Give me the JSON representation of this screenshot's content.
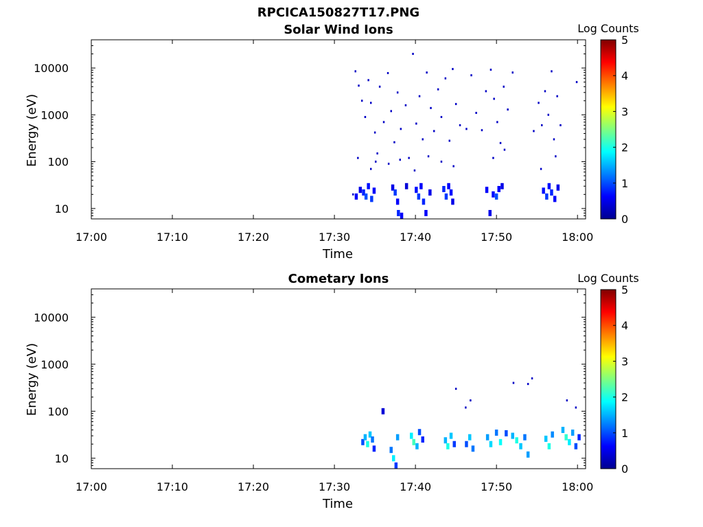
{
  "figure_title": "RPCICA150827T17.PNG",
  "colormap": [
    "#00008f",
    "#0000ff",
    "#0080ff",
    "#00ffff",
    "#80ff80",
    "#ffff00",
    "#ff8000",
    "#ff0000",
    "#800000"
  ],
  "chart_data": [
    {
      "type": "heatmap",
      "title": "Solar Wind Ions",
      "xlabel": "Time",
      "ylabel": "Energy (eV)",
      "yscale": "log",
      "ylim": [
        6,
        40000
      ],
      "xlim_minutes": [
        0,
        61
      ],
      "xticks": [
        "17:00",
        "17:10",
        "17:20",
        "17:30",
        "17:40",
        "17:50",
        "18:00"
      ],
      "yticks": [
        "10",
        "100",
        "1000",
        "10000"
      ],
      "colorbar": {
        "label": "Log Counts",
        "range": [
          0,
          5
        ],
        "ticks": [
          "0",
          "1",
          "2",
          "3",
          "4",
          "5"
        ]
      },
      "cells": [
        [
          32.3,
          20,
          0.3
        ],
        [
          32.7,
          18,
          0.6
        ],
        [
          33.2,
          25,
          0.5
        ],
        [
          33.6,
          22,
          0.8
        ],
        [
          33.9,
          18,
          1.0
        ],
        [
          34.2,
          30,
          0.7
        ],
        [
          34.6,
          16,
          0.9
        ],
        [
          34.9,
          24,
          0.6
        ],
        [
          37.2,
          28,
          0.5
        ],
        [
          37.5,
          22,
          0.9
        ],
        [
          37.8,
          14,
          0.6
        ],
        [
          37.9,
          8,
          0.8
        ],
        [
          38.3,
          7,
          0.6
        ],
        [
          38.9,
          30,
          0.4
        ],
        [
          40.1,
          25,
          0.7
        ],
        [
          40.4,
          18,
          0.9
        ],
        [
          40.7,
          30,
          0.6
        ],
        [
          41.0,
          14,
          0.8
        ],
        [
          41.3,
          8,
          0.6
        ],
        [
          41.8,
          22,
          0.5
        ],
        [
          43.5,
          26,
          0.8
        ],
        [
          43.8,
          18,
          0.9
        ],
        [
          44.1,
          30,
          0.6
        ],
        [
          44.4,
          22,
          0.7
        ],
        [
          44.6,
          14,
          0.5
        ],
        [
          48.8,
          25,
          0.6
        ],
        [
          49.2,
          8,
          0.5
        ],
        [
          49.6,
          20,
          0.7
        ],
        [
          50.0,
          18,
          1.0
        ],
        [
          50.3,
          26,
          0.6
        ],
        [
          50.7,
          30,
          0.5
        ],
        [
          55.8,
          24,
          0.7
        ],
        [
          56.2,
          18,
          0.9
        ],
        [
          56.5,
          30,
          0.7
        ],
        [
          56.8,
          22,
          0.8
        ],
        [
          57.2,
          16,
          0.6
        ],
        [
          57.6,
          28,
          0.5
        ],
        [
          32.6,
          8500,
          0.3
        ],
        [
          33.0,
          4200,
          0.3
        ],
        [
          33.4,
          2000,
          0.3
        ],
        [
          33.8,
          900,
          0.3
        ],
        [
          34.2,
          5500,
          0.3
        ],
        [
          34.5,
          1800,
          0.3
        ],
        [
          35.0,
          420,
          0.3
        ],
        [
          35.3,
          150,
          0.3
        ],
        [
          35.6,
          4000,
          0.3
        ],
        [
          36.1,
          700,
          0.3
        ],
        [
          36.6,
          7800,
          0.3
        ],
        [
          37.0,
          1200,
          0.3
        ],
        [
          37.4,
          260,
          0.3
        ],
        [
          37.8,
          3000,
          0.3
        ],
        [
          38.2,
          500,
          0.3
        ],
        [
          38.8,
          1600,
          0.3
        ],
        [
          39.2,
          120,
          0.3
        ],
        [
          39.7,
          20000,
          0.3
        ],
        [
          40.1,
          650,
          0.3
        ],
        [
          40.5,
          2500,
          0.3
        ],
        [
          40.9,
          300,
          0.3
        ],
        [
          41.4,
          8000,
          0.3
        ],
        [
          41.9,
          1400,
          0.3
        ],
        [
          42.3,
          450,
          0.3
        ],
        [
          42.8,
          3500,
          0.3
        ],
        [
          43.2,
          900,
          0.3
        ],
        [
          43.7,
          6000,
          0.3
        ],
        [
          44.2,
          280,
          0.3
        ],
        [
          44.6,
          9500,
          0.3
        ],
        [
          45.0,
          1700,
          0.3
        ],
        [
          45.5,
          600,
          0.3
        ],
        [
          46.3,
          500,
          0.3
        ],
        [
          46.9,
          7000,
          0.3
        ],
        [
          47.5,
          1100,
          0.3
        ],
        [
          48.2,
          470,
          0.3
        ],
        [
          48.7,
          3200,
          0.3
        ],
        [
          49.3,
          9200,
          0.3
        ],
        [
          49.7,
          2200,
          0.3
        ],
        [
          50.1,
          700,
          0.3
        ],
        [
          50.5,
          250,
          0.3
        ],
        [
          50.9,
          4000,
          0.3
        ],
        [
          51.4,
          1300,
          0.3
        ],
        [
          52.0,
          8000,
          0.3
        ],
        [
          54.6,
          450,
          0.3
        ],
        [
          55.2,
          1800,
          0.3
        ],
        [
          55.6,
          600,
          0.3
        ],
        [
          56.0,
          3200,
          0.3
        ],
        [
          56.4,
          1000,
          0.3
        ],
        [
          56.8,
          8500,
          0.3
        ],
        [
          57.1,
          300,
          0.3
        ],
        [
          57.5,
          2500,
          0.3
        ],
        [
          57.9,
          600,
          0.3
        ],
        [
          59.9,
          5000,
          0.3
        ],
        [
          32.9,
          120,
          0.3
        ],
        [
          34.5,
          70,
          0.3
        ],
        [
          35.1,
          100,
          0.3
        ],
        [
          36.7,
          90,
          0.3
        ],
        [
          38.1,
          110,
          0.3
        ],
        [
          39.9,
          65,
          0.3
        ],
        [
          41.6,
          130,
          0.3
        ],
        [
          43.2,
          100,
          0.3
        ],
        [
          44.7,
          80,
          0.3
        ],
        [
          49.6,
          120,
          0.3
        ],
        [
          51.0,
          180,
          0.3
        ],
        [
          55.5,
          70,
          0.3
        ],
        [
          57.3,
          130,
          0.3
        ]
      ]
    },
    {
      "type": "heatmap",
      "title": "Cometary Ions",
      "xlabel": "Time",
      "ylabel": "Energy (eV)",
      "yscale": "log",
      "ylim": [
        6,
        40000
      ],
      "xlim_minutes": [
        0,
        61
      ],
      "xticks": [
        "17:00",
        "17:10",
        "17:20",
        "17:30",
        "17:40",
        "17:50",
        "18:00"
      ],
      "yticks": [
        "10",
        "100",
        "1000",
        "10000"
      ],
      "colorbar": {
        "label": "Log Counts",
        "range": [
          0,
          5
        ],
        "ticks": [
          "0",
          "1",
          "2",
          "3",
          "4",
          "5"
        ]
      },
      "cells": [
        [
          33.5,
          22,
          1.0
        ],
        [
          33.8,
          28,
          1.5
        ],
        [
          34.1,
          20,
          2.0
        ],
        [
          34.4,
          32,
          1.6
        ],
        [
          34.7,
          25,
          1.2
        ],
        [
          34.9,
          16,
          0.8
        ],
        [
          37.0,
          15,
          1.2
        ],
        [
          37.3,
          10,
          1.8
        ],
        [
          37.6,
          7,
          0.9
        ],
        [
          37.8,
          28,
          1.4
        ],
        [
          39.5,
          30,
          1.8
        ],
        [
          39.8,
          22,
          2.2
        ],
        [
          40.2,
          18,
          1.5
        ],
        [
          40.5,
          36,
          1.0
        ],
        [
          40.9,
          25,
          0.8
        ],
        [
          43.7,
          24,
          1.5
        ],
        [
          44.0,
          18,
          2.0
        ],
        [
          44.4,
          30,
          1.6
        ],
        [
          44.8,
          20,
          0.9
        ],
        [
          46.3,
          20,
          1.0
        ],
        [
          46.7,
          28,
          1.6
        ],
        [
          47.1,
          16,
          1.2
        ],
        [
          48.9,
          28,
          1.4
        ],
        [
          49.3,
          20,
          1.7
        ],
        [
          50.0,
          35,
          1.2
        ],
        [
          50.5,
          22,
          1.9
        ],
        [
          51.2,
          34,
          1.0
        ],
        [
          52.0,
          30,
          1.5
        ],
        [
          52.5,
          24,
          2.0
        ],
        [
          53.0,
          18,
          1.6
        ],
        [
          53.5,
          28,
          1.2
        ],
        [
          53.9,
          12,
          1.4
        ],
        [
          56.1,
          26,
          1.6
        ],
        [
          56.5,
          18,
          2.0
        ],
        [
          56.9,
          32,
          1.3
        ],
        [
          58.2,
          40,
          1.5
        ],
        [
          58.6,
          28,
          2.1
        ],
        [
          59.0,
          22,
          1.8
        ],
        [
          59.4,
          35,
          1.4
        ],
        [
          59.8,
          18,
          1.0
        ],
        [
          60.2,
          28,
          0.8
        ],
        [
          36.0,
          100,
          0.4
        ],
        [
          45.0,
          300,
          0.3
        ],
        [
          46.2,
          120,
          0.3
        ],
        [
          46.8,
          170,
          0.3
        ],
        [
          52.1,
          400,
          0.3
        ],
        [
          53.9,
          380,
          0.3
        ],
        [
          54.4,
          500,
          0.3
        ],
        [
          58.7,
          170,
          0.3
        ],
        [
          59.8,
          120,
          0.3
        ]
      ]
    }
  ]
}
